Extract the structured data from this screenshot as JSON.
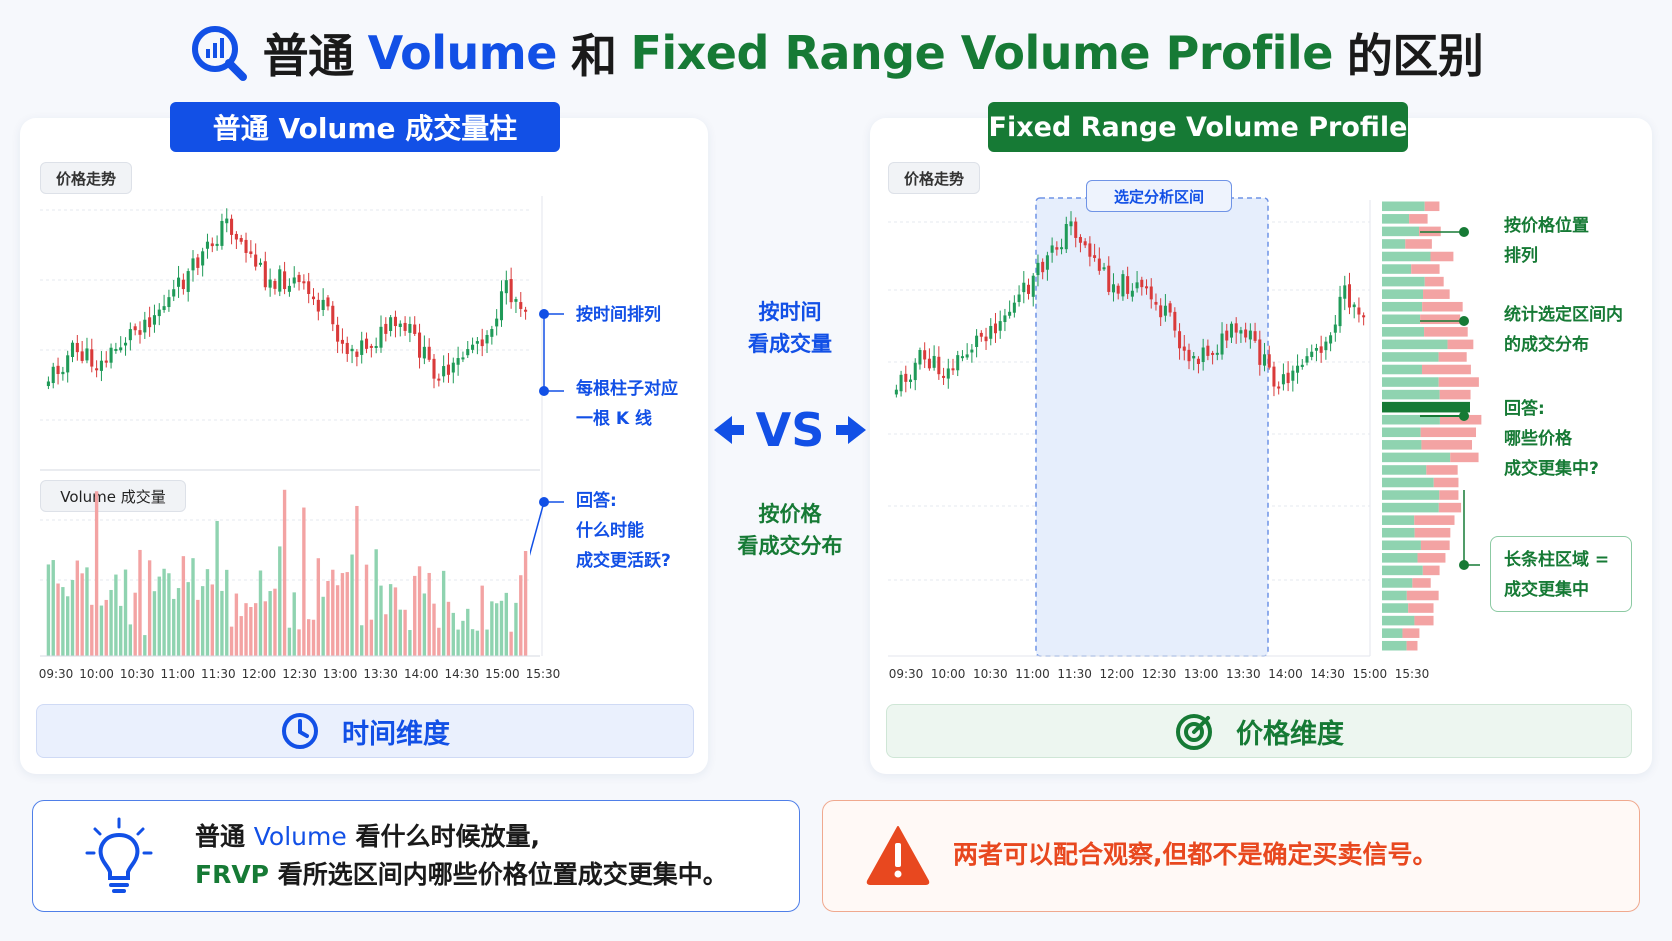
{
  "title": {
    "part1": "普通",
    "part2": "Volume",
    "part3": "和",
    "part4": "Fixed Range Volume Profile",
    "part5": "的区别",
    "icon": "magnifier-chart-icon"
  },
  "left_panel": {
    "header": "普通 Volume 成交量柱",
    "price_tag": "价格走势",
    "volume_tag": "Volume 成交量",
    "annotations": {
      "a1": "按时间排列",
      "a2_line1": "每根柱子对应",
      "a2_line2": "一根 K 线",
      "a3_line1": "回答:",
      "a3_line2": "什么时能",
      "a3_line3": "成交更活跃?"
    },
    "time_labels": [
      "09:30",
      "10:00",
      "10:30",
      "11:00",
      "11:30",
      "12:00",
      "12:30",
      "13:00",
      "13:30",
      "14:00",
      "14:30",
      "15:00",
      "15:30"
    ],
    "footer": "时间维度",
    "footer_icon": "clock-icon"
  },
  "right_panel": {
    "header": "Fixed Range Volume Profile",
    "price_tag": "价格走势",
    "range_tag": "选定分析区间",
    "annotations": {
      "a1_line1": "按价格位置",
      "a1_line2": "排列",
      "a2_line1": "统计选定区间内",
      "a2_line2": "的成交分布",
      "a3_line1": "回答:",
      "a3_line2": "哪些价格",
      "a3_line3": "成交更集中?",
      "a4_line1": "长条柱区域 =",
      "a4_line2": "成交更集中"
    },
    "time_labels": [
      "09:30",
      "10:00",
      "10:30",
      "11:00",
      "11:30",
      "12:00",
      "12:30",
      "13:00",
      "13:30",
      "14:00",
      "14:30",
      "15:00",
      "15:30"
    ],
    "footer": "价格维度",
    "footer_icon": "target-icon"
  },
  "middle": {
    "top_line1": "按时间",
    "top_line2": "看成交量",
    "vs": "VS",
    "bottom_line1": "按价格",
    "bottom_line2": "看成交分布"
  },
  "bottom_left": {
    "line1_a": "普通",
    "line1_b": "Volume",
    "line1_c": "看什么时候放量,",
    "line2_a": "FRVP",
    "line2_b": "看所选区间内哪些价格位置成交更集中。",
    "icon": "lightbulb-icon"
  },
  "bottom_right": {
    "text": "两者可以配合观察,但都不是确定买卖信号。",
    "icon": "warning-icon"
  },
  "colors": {
    "blue": "#1250e6",
    "green": "#167a35",
    "up_candle": "#1f9a58",
    "down_candle": "#d93a3a",
    "up_volume": "#8fd3b0",
    "down_volume": "#f3a3a3",
    "warning": "#e8481f"
  }
}
